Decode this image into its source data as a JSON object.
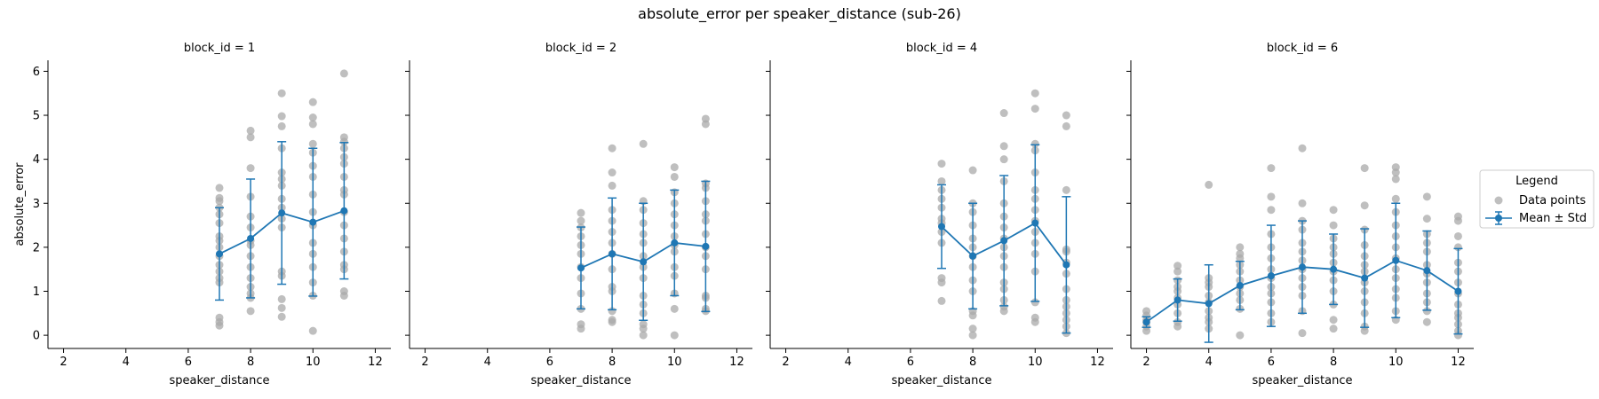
{
  "title": "absolute_error per speaker_distance (sub-26)",
  "legend": {
    "title": "Legend",
    "entries": [
      {
        "label": "Data points",
        "marker": "dot-gray"
      },
      {
        "label": "Mean ± Std",
        "marker": "errorbar-line"
      }
    ]
  },
  "colors": {
    "mean_line": "#1f77b4",
    "points": "#a9a9a9",
    "axis": "#000000"
  },
  "chart_data": [
    {
      "type": "scatter",
      "title": "block_id = 1",
      "xlabel": "speaker_distance",
      "ylabel": "absolute_error",
      "xticks": [
        2,
        4,
        6,
        8,
        10,
        12
      ],
      "yticks": [
        0,
        1,
        2,
        3,
        4,
        5,
        6
      ],
      "xlim": [
        1.5,
        12.5
      ],
      "ylim": [
        -0.3,
        6.25
      ],
      "grid": false,
      "mean_series": [
        {
          "x": 7,
          "mean": 1.85,
          "std": 1.05
        },
        {
          "x": 8,
          "mean": 2.2,
          "std": 1.35
        },
        {
          "x": 9,
          "mean": 2.78,
          "std": 1.62
        },
        {
          "x": 10,
          "mean": 2.57,
          "std": 1.68
        },
        {
          "x": 11,
          "mean": 2.83,
          "std": 1.55
        }
      ],
      "points": [
        {
          "x": 7,
          "y": [
            0.22,
            0.3,
            0.4,
            1.2,
            1.3,
            1.45,
            1.6,
            1.8,
            2.0,
            2.15,
            2.25,
            2.55,
            2.75,
            2.9,
            3.05,
            3.12,
            3.35
          ]
        },
        {
          "x": 8,
          "y": [
            0.55,
            0.85,
            0.95,
            1.1,
            1.3,
            1.55,
            1.8,
            2.05,
            2.15,
            2.45,
            2.7,
            3.15,
            3.8,
            4.5,
            4.65
          ]
        },
        {
          "x": 9,
          "y": [
            0.42,
            0.62,
            0.82,
            1.35,
            1.45,
            2.45,
            2.65,
            2.9,
            3.1,
            3.4,
            3.55,
            3.7,
            4.25,
            4.75,
            4.98,
            5.5
          ]
        },
        {
          "x": 10,
          "y": [
            0.1,
            0.9,
            1.2,
            1.55,
            1.85,
            2.1,
            2.5,
            2.8,
            3.2,
            3.6,
            3.85,
            4.15,
            4.35,
            4.8,
            4.95,
            5.3
          ]
        },
        {
          "x": 11,
          "y": [
            0.9,
            1.0,
            1.5,
            1.6,
            1.9,
            2.2,
            2.5,
            2.8,
            3.2,
            3.3,
            3.6,
            3.9,
            4.05,
            4.25,
            4.4,
            4.5,
            5.95
          ]
        }
      ]
    },
    {
      "type": "scatter",
      "title": "block_id = 2",
      "xlabel": "speaker_distance",
      "ylabel": "",
      "xticks": [
        2,
        4,
        6,
        8,
        10,
        12
      ],
      "yticks": [
        0,
        1,
        2,
        3,
        4,
        5,
        6
      ],
      "xlim": [
        1.5,
        12.5
      ],
      "ylim": [
        -0.3,
        6.25
      ],
      "grid": false,
      "mean_series": [
        {
          "x": 7,
          "mean": 1.53,
          "std": 0.93
        },
        {
          "x": 8,
          "mean": 1.85,
          "std": 1.27
        },
        {
          "x": 9,
          "mean": 1.67,
          "std": 1.33
        },
        {
          "x": 10,
          "mean": 2.1,
          "std": 1.2
        },
        {
          "x": 11,
          "mean": 2.02,
          "std": 1.48
        }
      ],
      "points": [
        {
          "x": 7,
          "y": [
            0.15,
            0.25,
            0.6,
            0.95,
            1.3,
            1.55,
            1.85,
            2.05,
            2.25,
            2.45,
            2.6,
            2.78
          ]
        },
        {
          "x": 8,
          "y": [
            0.3,
            0.35,
            0.55,
            1.0,
            1.1,
            1.5,
            1.85,
            2.1,
            2.35,
            2.6,
            2.85,
            3.4,
            3.7,
            4.25
          ]
        },
        {
          "x": 9,
          "y": [
            0.0,
            0.15,
            0.25,
            0.5,
            0.7,
            0.9,
            1.3,
            1.55,
            1.8,
            2.1,
            2.3,
            2.55,
            2.85,
            3.05,
            4.35
          ]
        },
        {
          "x": 10,
          "y": [
            0.0,
            0.6,
            0.95,
            1.35,
            1.55,
            1.9,
            2.05,
            2.25,
            2.5,
            2.75,
            3.0,
            3.25,
            3.6,
            3.82
          ]
        },
        {
          "x": 11,
          "y": [
            0.55,
            0.6,
            0.85,
            0.9,
            1.5,
            1.8,
            2.0,
            2.3,
            2.6,
            2.75,
            3.05,
            3.35,
            3.45,
            4.8,
            4.92
          ]
        }
      ]
    },
    {
      "type": "scatter",
      "title": "block_id = 4",
      "xlabel": "speaker_distance",
      "ylabel": "",
      "xticks": [
        2,
        4,
        6,
        8,
        10,
        12
      ],
      "yticks": [
        0,
        1,
        2,
        3,
        4,
        5,
        6
      ],
      "xlim": [
        1.5,
        12.5
      ],
      "ylim": [
        -0.3,
        6.25
      ],
      "grid": false,
      "mean_series": [
        {
          "x": 7,
          "mean": 2.47,
          "std": 0.95
        },
        {
          "x": 8,
          "mean": 1.8,
          "std": 1.2
        },
        {
          "x": 9,
          "mean": 2.15,
          "std": 1.48
        },
        {
          "x": 10,
          "mean": 2.55,
          "std": 1.78
        },
        {
          "x": 11,
          "mean": 1.6,
          "std": 1.55
        }
      ],
      "points": [
        {
          "x": 7,
          "y": [
            0.78,
            1.2,
            1.3,
            2.1,
            2.35,
            2.55,
            2.65,
            2.9,
            3.1,
            3.3,
            3.5,
            3.9
          ]
        },
        {
          "x": 8,
          "y": [
            0.0,
            0.15,
            0.45,
            0.55,
            1.0,
            1.25,
            1.55,
            1.8,
            2.0,
            2.2,
            2.5,
            2.8,
            3.0,
            3.75
          ]
        },
        {
          "x": 9,
          "y": [
            0.55,
            0.65,
            0.8,
            1.05,
            1.2,
            1.55,
            1.8,
            2.0,
            2.2,
            2.45,
            2.7,
            3.0,
            3.5,
            4.0,
            4.3,
            5.05
          ]
        },
        {
          "x": 10,
          "y": [
            0.3,
            0.4,
            0.75,
            1.45,
            1.85,
            2.1,
            2.35,
            2.6,
            2.85,
            3.1,
            3.3,
            3.7,
            4.2,
            4.35,
            5.15,
            5.5
          ]
        },
        {
          "x": 11,
          "y": [
            0.05,
            0.2,
            0.35,
            0.5,
            0.65,
            0.8,
            1.05,
            1.4,
            1.65,
            1.9,
            1.95,
            3.3,
            4.75,
            5.0
          ]
        }
      ]
    },
    {
      "type": "scatter",
      "title": "block_id = 6",
      "xlabel": "speaker_distance",
      "ylabel": "",
      "xticks": [
        2,
        4,
        6,
        8,
        10,
        12
      ],
      "yticks": [
        0,
        1,
        2,
        3,
        4,
        5,
        6
      ],
      "xlim": [
        1.5,
        12.5
      ],
      "ylim": [
        -0.3,
        6.25
      ],
      "grid": false,
      "mean_series": [
        {
          "x": 2,
          "mean": 0.3,
          "std": 0.12
        },
        {
          "x": 3,
          "mean": 0.8,
          "std": 0.48
        },
        {
          "x": 4,
          "mean": 0.72,
          "std": 0.88
        },
        {
          "x": 5,
          "mean": 1.13,
          "std": 0.55
        },
        {
          "x": 6,
          "mean": 1.35,
          "std": 1.15
        },
        {
          "x": 7,
          "mean": 1.55,
          "std": 1.05
        },
        {
          "x": 8,
          "mean": 1.5,
          "std": 0.8
        },
        {
          "x": 9,
          "mean": 1.3,
          "std": 1.12
        },
        {
          "x": 10,
          "mean": 1.7,
          "std": 1.3
        },
        {
          "x": 11,
          "mean": 1.47,
          "std": 0.9
        },
        {
          "x": 12,
          "mean": 1.0,
          "std": 0.97
        }
      ],
      "points": [
        {
          "x": 2,
          "y": [
            0.1,
            0.2,
            0.3,
            0.35,
            0.45,
            0.55
          ]
        },
        {
          "x": 3,
          "y": [
            0.2,
            0.3,
            0.5,
            0.7,
            0.85,
            1.0,
            1.1,
            1.25,
            1.45,
            1.58
          ]
        },
        {
          "x": 4,
          "y": [
            0.15,
            0.3,
            0.4,
            0.55,
            0.75,
            0.9,
            1.1,
            1.2,
            1.3,
            3.42
          ]
        },
        {
          "x": 5,
          "y": [
            0.0,
            0.6,
            0.8,
            0.95,
            1.1,
            1.25,
            1.45,
            1.6,
            1.75,
            1.85,
            2.0
          ]
        },
        {
          "x": 6,
          "y": [
            0.3,
            0.5,
            0.75,
            0.95,
            1.1,
            1.3,
            1.5,
            1.75,
            2.0,
            2.3,
            2.85,
            3.15,
            3.8
          ]
        },
        {
          "x": 7,
          "y": [
            0.05,
            0.55,
            0.9,
            1.1,
            1.3,
            1.5,
            1.7,
            1.9,
            2.1,
            2.4,
            2.6,
            3.0,
            4.25
          ]
        },
        {
          "x": 8,
          "y": [
            0.15,
            0.35,
            0.7,
            1.0,
            1.25,
            1.45,
            1.65,
            1.85,
            2.0,
            2.2,
            2.5,
            2.85
          ]
        },
        {
          "x": 9,
          "y": [
            0.1,
            0.2,
            0.5,
            0.75,
            1.0,
            1.2,
            1.45,
            1.6,
            1.8,
            2.05,
            2.4,
            2.95,
            3.8
          ]
        },
        {
          "x": 10,
          "y": [
            0.35,
            0.55,
            0.85,
            1.05,
            1.3,
            1.5,
            1.75,
            2.0,
            2.25,
            2.5,
            2.8,
            3.1,
            3.55,
            3.7,
            3.82
          ]
        },
        {
          "x": 11,
          "y": [
            0.3,
            0.55,
            0.75,
            0.95,
            1.2,
            1.4,
            1.6,
            1.9,
            2.1,
            2.3,
            2.65,
            3.15
          ]
        },
        {
          "x": 12,
          "y": [
            0.0,
            0.1,
            0.25,
            0.4,
            0.5,
            0.7,
            0.95,
            1.2,
            1.45,
            1.65,
            2.0,
            2.25,
            2.6,
            2.7
          ]
        }
      ]
    }
  ]
}
